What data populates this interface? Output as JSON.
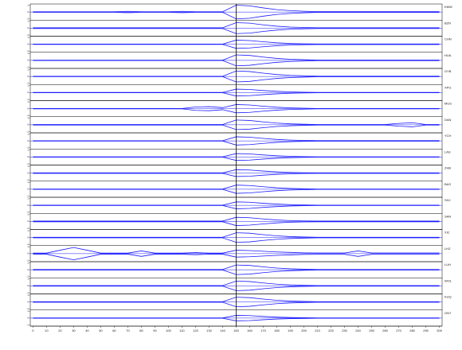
{
  "chart_data": {
    "type": "envelope",
    "x": [
      0,
      10,
      20,
      30,
      40,
      50,
      60,
      70,
      80,
      90,
      100,
      110,
      120,
      130,
      140,
      150,
      160,
      170,
      180,
      190,
      200,
      210,
      220,
      230,
      240,
      250,
      260,
      270,
      280,
      290,
      300
    ],
    "xlim": [
      -2,
      302
    ],
    "xticks": [
      0,
      10,
      20,
      30,
      40,
      50,
      60,
      70,
      80,
      90,
      100,
      110,
      120,
      130,
      140,
      150,
      160,
      170,
      180,
      190,
      200,
      210,
      220,
      230,
      240,
      250,
      260,
      270,
      280,
      290,
      300
    ],
    "ylim": [
      -1,
      1
    ],
    "yticks": [
      -1,
      0,
      1
    ],
    "marker_x": 150,
    "color": "#1a1aff",
    "series": [
      {
        "name": "KMW",
        "values": [
          0.04,
          0.04,
          0.04,
          0.04,
          0.04,
          0.04,
          0.04,
          0.1,
          0.04,
          0.04,
          0.04,
          0.1,
          0.04,
          0.04,
          0.04,
          1,
          0.9,
          0.6,
          0.35,
          0.2,
          0.12,
          0.06,
          0.06,
          0.06,
          0.06,
          0.06,
          0.06,
          0.06,
          0.06,
          0.06,
          0.06
        ]
      },
      {
        "name": "BZN",
        "values": [
          0.06,
          0.06,
          0.06,
          0.06,
          0.06,
          0.06,
          0.06,
          0.06,
          0.06,
          0.06,
          0.06,
          0.06,
          0.06,
          0.06,
          0.06,
          0.8,
          0.72,
          0.48,
          0.28,
          0.16,
          0.1,
          0.06,
          0.06,
          0.06,
          0.06,
          0.06,
          0.06,
          0.06,
          0.06,
          0.06,
          0.06
        ]
      },
      {
        "name": "CHN",
        "values": [
          0.03,
          0.03,
          0.03,
          0.03,
          0.03,
          0.03,
          0.03,
          0.03,
          0.03,
          0.03,
          0.03,
          0.03,
          0.03,
          0.03,
          0.03,
          0.6,
          0.54,
          0.36,
          0.21,
          0.12,
          0.07,
          0.04,
          0.04,
          0.04,
          0.04,
          0.04,
          0.04,
          0.04,
          0.04,
          0.04,
          0.04
        ]
      },
      {
        "name": "HUA",
        "values": [
          0.03,
          0.03,
          0.03,
          0.03,
          0.03,
          0.03,
          0.03,
          0.03,
          0.03,
          0.03,
          0.03,
          0.03,
          0.03,
          0.03,
          0.03,
          0.8,
          0.72,
          0.48,
          0.28,
          0.16,
          0.1,
          0.04,
          0.04,
          0.04,
          0.04,
          0.04,
          0.04,
          0.04,
          0.04,
          0.04,
          0.04
        ]
      },
      {
        "name": "GYB",
        "values": [
          0.03,
          0.03,
          0.03,
          0.03,
          0.03,
          0.03,
          0.03,
          0.03,
          0.03,
          0.03,
          0.03,
          0.03,
          0.03,
          0.03,
          0.03,
          0.8,
          0.72,
          0.48,
          0.28,
          0.16,
          0.1,
          0.04,
          0.04,
          0.04,
          0.04,
          0.04,
          0.04,
          0.04,
          0.04,
          0.04,
          0.04
        ]
      },
      {
        "name": "XPG",
        "values": [
          0.03,
          0.03,
          0.03,
          0.03,
          0.03,
          0.03,
          0.03,
          0.03,
          0.03,
          0.03,
          0.03,
          0.03,
          0.03,
          0.03,
          0.03,
          0.5,
          0.45,
          0.3,
          0.18,
          0.1,
          0.06,
          0.03,
          0.03,
          0.03,
          0.03,
          0.03,
          0.03,
          0.03,
          0.03,
          0.03,
          0.03
        ]
      },
      {
        "name": "MUS",
        "values": [
          0.03,
          0.03,
          0.03,
          0.03,
          0.03,
          0.03,
          0.03,
          0.03,
          0.03,
          0.03,
          0.03,
          0.03,
          0.25,
          0.3,
          0.15,
          0.6,
          0.54,
          0.36,
          0.21,
          0.12,
          0.07,
          0.03,
          0.03,
          0.03,
          0.03,
          0.03,
          0.03,
          0.03,
          0.03,
          0.03,
          0.03
        ]
      },
      {
        "name": "DAN",
        "values": [
          0.04,
          0.04,
          0.04,
          0.04,
          0.04,
          0.04,
          0.04,
          0.04,
          0.04,
          0.04,
          0.04,
          0.04,
          0.04,
          0.04,
          0.04,
          0.7,
          0.63,
          0.42,
          0.25,
          0.14,
          0.08,
          0.04,
          0.04,
          0.04,
          0.04,
          0.04,
          0.04,
          0.2,
          0.3,
          0.04,
          0.04
        ]
      },
      {
        "name": "YCH",
        "values": [
          0.03,
          0.03,
          0.03,
          0.03,
          0.03,
          0.03,
          0.03,
          0.03,
          0.03,
          0.03,
          0.03,
          0.03,
          0.03,
          0.03,
          0.03,
          0.6,
          0.54,
          0.36,
          0.21,
          0.12,
          0.07,
          0.04,
          0.04,
          0.04,
          0.04,
          0.04,
          0.04,
          0.04,
          0.04,
          0.04,
          0.04
        ]
      },
      {
        "name": "LAS",
        "values": [
          0.03,
          0.03,
          0.03,
          0.03,
          0.03,
          0.03,
          0.03,
          0.03,
          0.03,
          0.03,
          0.03,
          0.03,
          0.03,
          0.03,
          0.03,
          0.5,
          0.45,
          0.3,
          0.18,
          0.1,
          0.06,
          0.03,
          0.03,
          0.03,
          0.03,
          0.03,
          0.03,
          0.03,
          0.03,
          0.03,
          0.03
        ]
      },
      {
        "name": "ZHB",
        "values": [
          0.04,
          0.04,
          0.04,
          0.04,
          0.04,
          0.04,
          0.04,
          0.04,
          0.04,
          0.04,
          0.04,
          0.04,
          0.04,
          0.04,
          0.04,
          0.5,
          0.45,
          0.3,
          0.18,
          0.1,
          0.06,
          0.04,
          0.04,
          0.04,
          0.04,
          0.04,
          0.04,
          0.04,
          0.04,
          0.04,
          0.04
        ]
      },
      {
        "name": "BAS",
        "values": [
          0.03,
          0.03,
          0.03,
          0.03,
          0.03,
          0.03,
          0.03,
          0.03,
          0.03,
          0.03,
          0.03,
          0.03,
          0.03,
          0.03,
          0.03,
          0.6,
          0.54,
          0.36,
          0.21,
          0.12,
          0.07,
          0.03,
          0.03,
          0.03,
          0.03,
          0.03,
          0.03,
          0.03,
          0.03,
          0.03,
          0.03
        ]
      },
      {
        "name": "SHJ",
        "values": [
          0.03,
          0.03,
          0.03,
          0.03,
          0.03,
          0.03,
          0.03,
          0.03,
          0.03,
          0.03,
          0.03,
          0.03,
          0.03,
          0.03,
          0.03,
          0.5,
          0.45,
          0.3,
          0.18,
          0.1,
          0.06,
          0.03,
          0.03,
          0.03,
          0.03,
          0.03,
          0.03,
          0.03,
          0.03,
          0.03,
          0.03
        ]
      },
      {
        "name": "SAN",
        "values": [
          0.05,
          0.05,
          0.05,
          0.05,
          0.05,
          0.05,
          0.05,
          0.05,
          0.05,
          0.05,
          0.05,
          0.05,
          0.05,
          0.05,
          0.05,
          0.6,
          0.54,
          0.36,
          0.21,
          0.12,
          0.07,
          0.05,
          0.05,
          0.05,
          0.05,
          0.05,
          0.05,
          0.05,
          0.05,
          0.05,
          0.05
        ]
      },
      {
        "name": "XIC",
        "values": [
          0.04,
          0.04,
          0.04,
          0.04,
          0.04,
          0.04,
          0.04,
          0.04,
          0.04,
          0.04,
          0.04,
          0.04,
          0.04,
          0.04,
          0.04,
          0.7,
          0.63,
          0.42,
          0.25,
          0.14,
          0.08,
          0.04,
          0.04,
          0.04,
          0.04,
          0.04,
          0.04,
          0.04,
          0.04,
          0.04,
          0.04
        ]
      },
      {
        "name": "LHZ",
        "values": [
          0.08,
          0.08,
          0.5,
          0.9,
          0.5,
          0.08,
          0.08,
          0.08,
          0.4,
          0.08,
          0.08,
          0.08,
          0.15,
          0.08,
          0.08,
          0.5,
          0.45,
          0.35,
          0.25,
          0.18,
          0.12,
          0.1,
          0.1,
          0.1,
          0.4,
          0.1,
          0.1,
          0.1,
          0.1,
          0.1,
          0.1
        ]
      },
      {
        "name": "LUH",
        "values": [
          0.04,
          0.04,
          0.04,
          0.04,
          0.04,
          0.04,
          0.04,
          0.04,
          0.04,
          0.04,
          0.04,
          0.04,
          0.04,
          0.04,
          0.04,
          0.7,
          0.63,
          0.42,
          0.25,
          0.14,
          0.08,
          0.04,
          0.04,
          0.04,
          0.04,
          0.04,
          0.04,
          0.04,
          0.04,
          0.04,
          0.04
        ]
      },
      {
        "name": "WOL",
        "values": [
          0.04,
          0.04,
          0.04,
          0.04,
          0.04,
          0.04,
          0.04,
          0.04,
          0.04,
          0.04,
          0.04,
          0.04,
          0.04,
          0.04,
          0.04,
          0.7,
          0.63,
          0.42,
          0.25,
          0.14,
          0.08,
          0.04,
          0.04,
          0.04,
          0.04,
          0.04,
          0.04,
          0.04,
          0.04,
          0.04,
          0.04
        ]
      },
      {
        "name": "KUQ",
        "values": [
          0.04,
          0.04,
          0.04,
          0.04,
          0.04,
          0.04,
          0.04,
          0.04,
          0.04,
          0.04,
          0.04,
          0.04,
          0.04,
          0.04,
          0.04,
          0.7,
          0.63,
          0.42,
          0.25,
          0.14,
          0.08,
          0.04,
          0.04,
          0.04,
          0.04,
          0.04,
          0.04,
          0.04,
          0.04,
          0.04,
          0.04
        ]
      },
      {
        "name": "GNT",
        "values": [
          0.03,
          0.03,
          0.03,
          0.03,
          0.03,
          0.03,
          0.03,
          0.03,
          0.03,
          0.03,
          0.03,
          0.03,
          0.03,
          0.03,
          0.03,
          0.4,
          0.36,
          0.24,
          0.14,
          0.08,
          0.05,
          0.03,
          0.03,
          0.03,
          0.03,
          0.03,
          0.03,
          0.03,
          0.03,
          0.03,
          0.03
        ]
      }
    ]
  }
}
